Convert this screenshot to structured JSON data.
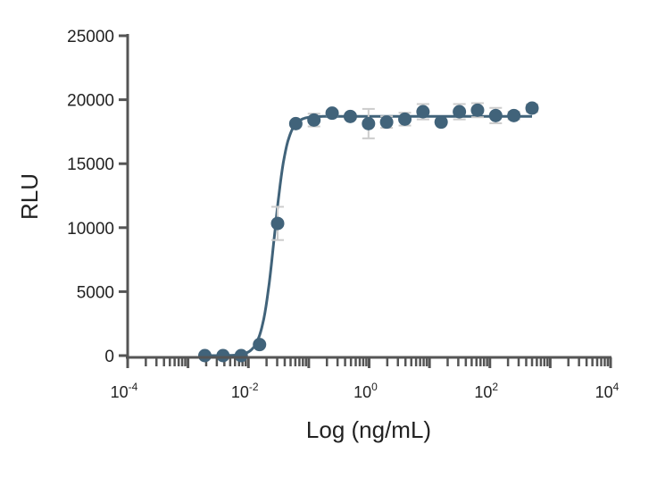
{
  "chart_data": {
    "type": "scatter",
    "xlabel": "Log (ng/mL)",
    "ylabel": "RLU",
    "xscale": "log",
    "xlim": [
      0.0001,
      10000
    ],
    "ylim": [
      0,
      25000
    ],
    "x_tick_labels": [
      {
        "base": "10",
        "exp": "-4",
        "value": 0.0001
      },
      {
        "base": "10",
        "exp": "-2",
        "value": 0.01
      },
      {
        "base": "10",
        "exp": "0",
        "value": 1
      },
      {
        "base": "10",
        "exp": "2",
        "value": 100
      },
      {
        "base": "10",
        "exp": "4",
        "value": 10000
      }
    ],
    "y_tick_labels": [
      "0",
      "5000",
      "10000",
      "15000",
      "20000",
      "25000"
    ],
    "grid": false,
    "colors": {
      "points": "#41637a",
      "curve": "#41637a",
      "error_bars": "#cccccc",
      "axis": "#555555"
    },
    "points": [
      {
        "x": 0.0019,
        "y": 0,
        "err": 0
      },
      {
        "x": 0.0038,
        "y": 0,
        "err": 0
      },
      {
        "x": 0.0076,
        "y": 0,
        "err": 0
      },
      {
        "x": 0.0153,
        "y": 860,
        "err": 150
      },
      {
        "x": 0.0305,
        "y": 10330,
        "err": 1300
      },
      {
        "x": 0.061,
        "y": 18130,
        "err": 150
      },
      {
        "x": 0.122,
        "y": 18410,
        "err": 500
      },
      {
        "x": 0.244,
        "y": 18950,
        "err": 200
      },
      {
        "x": 0.488,
        "y": 18690,
        "err": 150
      },
      {
        "x": 0.977,
        "y": 18130,
        "err": 1150
      },
      {
        "x": 1.95,
        "y": 18250,
        "err": 450
      },
      {
        "x": 3.91,
        "y": 18480,
        "err": 500
      },
      {
        "x": 7.81,
        "y": 19060,
        "err": 600
      },
      {
        "x": 15.6,
        "y": 18250,
        "err": 0
      },
      {
        "x": 31.3,
        "y": 19060,
        "err": 600
      },
      {
        "x": 62.5,
        "y": 19180,
        "err": 550
      },
      {
        "x": 125,
        "y": 18760,
        "err": 600
      },
      {
        "x": 250,
        "y": 18760,
        "err": 300
      },
      {
        "x": 500,
        "y": 19340,
        "err": 300
      }
    ],
    "fit": {
      "model": "4PL",
      "bottom": 0,
      "top": 18700,
      "ec50": 0.027,
      "hill": 4.2
    }
  }
}
